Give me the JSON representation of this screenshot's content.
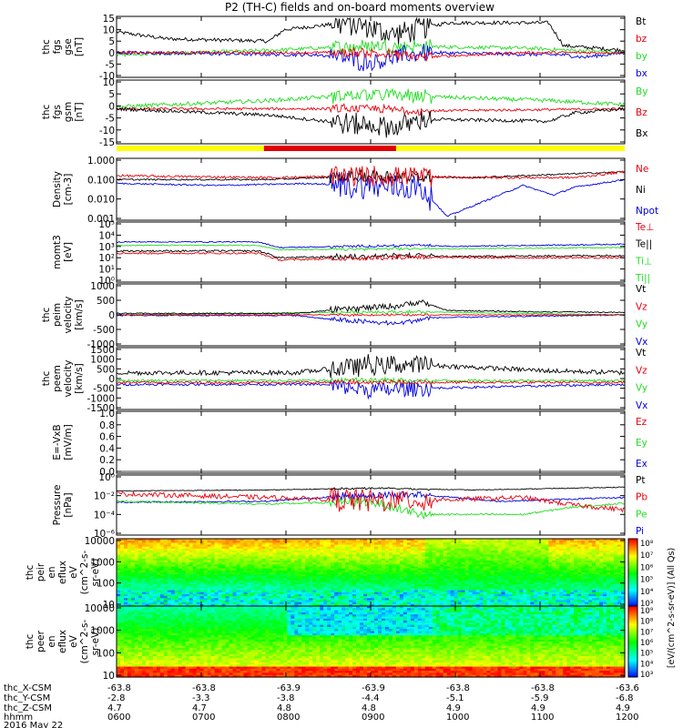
{
  "title": "P2 (TH-C) fields and on-board moments overview",
  "colors": {
    "black": "#000000",
    "red": "#e8000b",
    "green": "#22dd22",
    "blue": "#0000e0",
    "mode_slow": "#ffff00",
    "mode_fast": "#e00000"
  },
  "footer": {
    "row_labels": [
      "thc_X-CSM",
      "thc_Y-CSM",
      "thc_Z-CSM",
      "hhmm"
    ],
    "x_csm": [
      "-63.8",
      "-63.8",
      "-63.9",
      "-63.9",
      "-63.8",
      "-63.8",
      "-63.6"
    ],
    "y_csm": [
      "-2.8",
      "-3.3",
      "-3.8",
      "-4.4",
      "-5.1",
      "-5.9",
      "-6.8"
    ],
    "z_csm": [
      "4.7",
      "4.7",
      "4.8",
      "4.8",
      "4.9",
      "4.9",
      "4.9"
    ],
    "hhmm": [
      "0600",
      "0700",
      "0800",
      "0900",
      "1000",
      "1100",
      "1200"
    ],
    "date": "2016 May 22"
  },
  "colorbar_label": "[eV/(cm^2-s-sr-eV)] (All Qs)",
  "chart_data": [
    {
      "id": "fgs_gse",
      "type": "line",
      "ylabel": [
        "thc",
        "fgs",
        "gse",
        "[nT]"
      ],
      "yticks": [
        "15",
        "10",
        "5",
        "0",
        "-5",
        "-10"
      ],
      "ylim": [
        -10,
        15
      ],
      "legend": [
        {
          "text": "Bt",
          "color": "#000000"
        },
        {
          "text": "bz",
          "color": "#e8000b"
        },
        {
          "text": "by",
          "color": "#22dd22"
        },
        {
          "text": "bx",
          "color": "#0000e0"
        }
      ]
    },
    {
      "id": "fgs_gsm",
      "type": "line",
      "ylabel": [
        "thc",
        "fgs",
        "gsm",
        "[nT]"
      ],
      "yticks": [
        "10",
        "5",
        "0",
        "-5",
        "-10",
        "-15"
      ],
      "ylim": [
        -17,
        12
      ],
      "legend": [
        {
          "text": "By",
          "color": "#22dd22"
        },
        {
          "text": "Bz",
          "color": "#e8000b"
        },
        {
          "text": "Bx",
          "color": "#000000"
        }
      ]
    },
    {
      "id": "density",
      "type": "line",
      "scale": "log",
      "ylabel": [
        "Density",
        "[cm-3]"
      ],
      "yticks": [
        "1.000",
        "0.100",
        "0.010",
        "0.001"
      ],
      "ylim": [
        0.001,
        1
      ],
      "legend": [
        {
          "text": "Ne",
          "color": "#e8000b"
        },
        {
          "text": "Ni",
          "color": "#000000"
        },
        {
          "text": "Npot",
          "color": "#0000e0"
        }
      ]
    },
    {
      "id": "temperature",
      "type": "line",
      "scale": "log",
      "ylabel": [
        "momt3",
        "[eV]"
      ],
      "yticks": [
        "10⁵",
        "10⁴",
        "10³",
        "10²",
        "10¹",
        "10⁰"
      ],
      "ylim": [
        1,
        100000
      ],
      "legend": [
        {
          "text": "Te⊥",
          "color": "#e8000b"
        },
        {
          "text": "Te||",
          "color": "#000000"
        },
        {
          "text": "Ti⊥",
          "color": "#22dd22"
        },
        {
          "text": "Ti||",
          "color": "#22dd22"
        }
      ]
    },
    {
      "id": "peim_velocity",
      "type": "line",
      "ylabel": [
        "thc",
        "peim",
        "velocity",
        "[km/s]"
      ],
      "yticks": [
        "1000",
        "500",
        "0",
        "-500",
        "-1000"
      ],
      "ylim": [
        -1000,
        1000
      ],
      "legend": [
        {
          "text": "Vt",
          "color": "#000000"
        },
        {
          "text": "Vz",
          "color": "#e8000b"
        },
        {
          "text": "Vy",
          "color": "#22dd22"
        },
        {
          "text": "Vx",
          "color": "#0000e0"
        }
      ]
    },
    {
      "id": "peem_velocity",
      "type": "line",
      "ylabel": [
        "thc",
        "peem",
        "velocity",
        "[km/s]"
      ],
      "yticks": [
        "1500",
        "1000",
        "500",
        "0",
        "-500",
        "-1000",
        "-1500"
      ],
      "ylim": [
        -1500,
        1500
      ],
      "legend": [
        {
          "text": "Vt",
          "color": "#000000"
        },
        {
          "text": "Vz",
          "color": "#e8000b"
        },
        {
          "text": "Vy",
          "color": "#22dd22"
        },
        {
          "text": "Vx",
          "color": "#0000e0"
        }
      ]
    },
    {
      "id": "efield",
      "type": "line",
      "ylabel": [
        "E=-VxB",
        "[mV/m]"
      ],
      "yticks": [
        "1.0",
        "0.8",
        "0.6",
        "0.4",
        "0.2",
        "0.0"
      ],
      "ylim": [
        0,
        1
      ],
      "legend": [
        {
          "text": "Ez",
          "color": "#e8000b"
        },
        {
          "text": "Ey",
          "color": "#22dd22"
        },
        {
          "text": "Ex",
          "color": "#0000e0"
        }
      ]
    },
    {
      "id": "pressure",
      "type": "line",
      "scale": "log",
      "ylabel": [
        "Pressure",
        "[nPa]"
      ],
      "yticks": [
        "10⁰",
        "10⁻²",
        "10⁻⁴",
        "10⁻⁶"
      ],
      "ylim": [
        1e-06,
        1
      ],
      "legend": [
        {
          "text": "Pt",
          "color": "#000000"
        },
        {
          "text": "Pb",
          "color": "#e8000b"
        },
        {
          "text": "Pe",
          "color": "#22dd22"
        },
        {
          "text": "Pi",
          "color": "#0000e0"
        }
      ]
    },
    {
      "id": "peir_spectrogram",
      "type": "heatmap",
      "ylabel": [
        "thc",
        "peir",
        "en",
        "eflux",
        "eV",
        "(cm^2-s-",
        "sr-eV)"
      ],
      "yticks": [
        "10000",
        "1000",
        "100",
        "10"
      ],
      "ylim": [
        5,
        30000
      ],
      "colorbar_ticks": [
        "10⁸",
        "10⁷",
        "10⁶",
        "10⁵",
        "10⁴",
        "10³"
      ]
    },
    {
      "id": "peer_spectrogram",
      "type": "heatmap",
      "ylabel": [
        "thc",
        "peer",
        "en",
        "eflux",
        "eV",
        "(cm^2-s-",
        "sr-eV)"
      ],
      "yticks": [
        "10000",
        "1000",
        "100",
        "10"
      ],
      "ylim": [
        5,
        30000
      ],
      "colorbar_ticks": [
        "10⁹",
        "10⁸",
        "10⁷",
        "10⁶",
        "10⁵",
        "10⁴",
        "10³"
      ]
    }
  ]
}
